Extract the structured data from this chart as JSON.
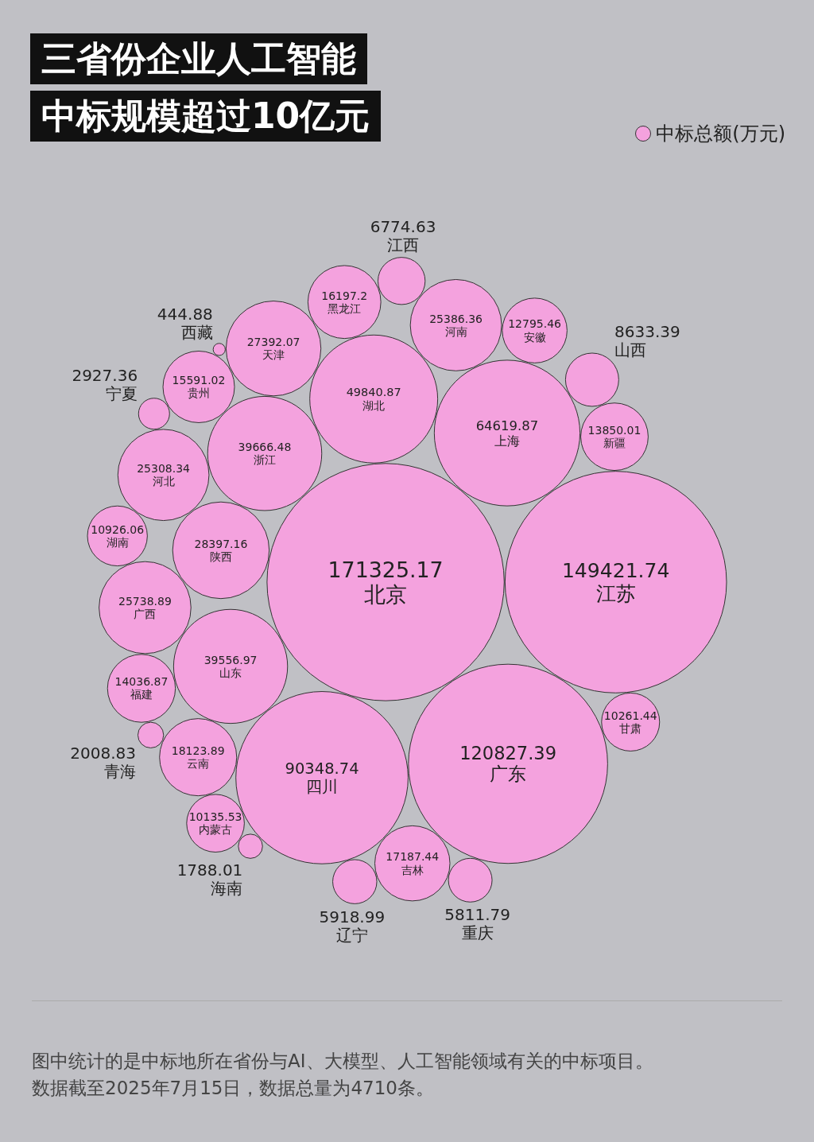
{
  "chart_data": {
    "type": "other",
    "title": "三省份企业人工智能",
    "subtitle": "中标规模超过10亿元",
    "categories": [
      "北京",
      "江苏",
      "广东",
      "四川",
      "上海",
      "湖北",
      "浙江",
      "山东",
      "陕西",
      "天津",
      "广西",
      "河南",
      "河北",
      "云南",
      "吉林",
      "黑龙江",
      "贵州",
      "福建",
      "新疆",
      "安徽",
      "湖南",
      "甘肃",
      "内蒙古",
      "山西",
      "江西",
      "辽宁",
      "重庆",
      "宁夏",
      "青海",
      "海南",
      "西藏"
    ],
    "series": [
      {
        "name": "中标总额(万元)",
        "color": "#f4a2de",
        "values": [
          171325.17,
          149421.74,
          120827.39,
          90348.74,
          64619.87,
          49840.87,
          39666.48,
          39556.97,
          28397.16,
          27392.07,
          25738.89,
          25386.36,
          25308.34,
          18123.89,
          17187.44,
          16197.2,
          15591.02,
          14036.87,
          13850.01,
          12795.46,
          10926.06,
          10261.44,
          10135.53,
          8633.39,
          6774.63,
          5918.99,
          5811.79,
          2927.36,
          2008.83,
          1788.01,
          444.88
        ]
      }
    ],
    "data_labels": true,
    "legend": "top right",
    "annotations": [
      "图中统计的是中标地所在省份与AI、大模型、人工智能领域有关的中标项目。数据截至2025年7月15日，数据总量为4710条。"
    ]
  }
}
